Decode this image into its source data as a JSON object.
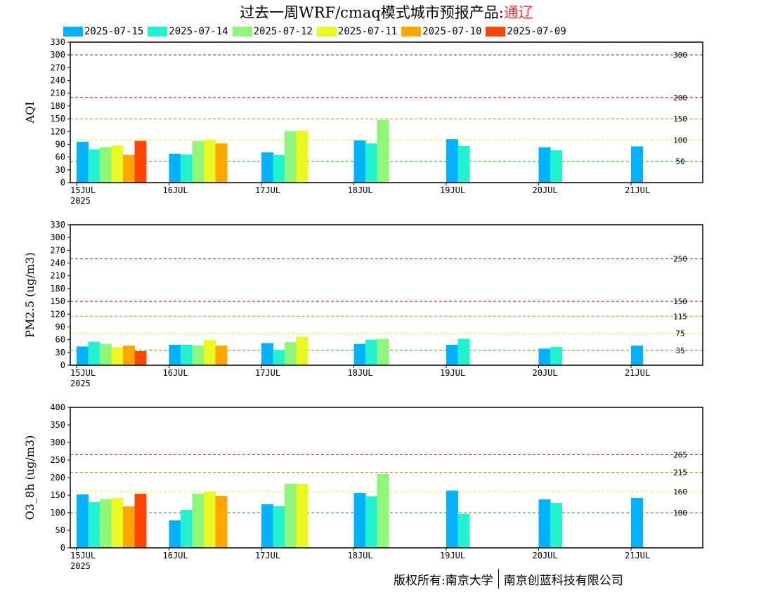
{
  "title": {
    "main": "过去一周WRF/cmaq模式城市预报产品:",
    "city": "通辽",
    "city_color": "#e8312a"
  },
  "legend": [
    {
      "label": "2025-07-15",
      "color": "#00b2ff"
    },
    {
      "label": "2025-07-14",
      "color": "#22f2cf"
    },
    {
      "label": "2025-07-12",
      "color": "#8ef77a"
    },
    {
      "label": "2025-07-11",
      "color": "#eaf721"
    },
    {
      "label": "2025-07-10",
      "color": "#ffa500"
    },
    {
      "label": "2025-07-09",
      "color": "#ff4500"
    }
  ],
  "footer": {
    "left": "版权所有:南京大学",
    "right": "南京创蓝科技有限公司"
  },
  "chart_data": [
    {
      "type": "bar",
      "ylabel": "AQI",
      "ylim": [
        0,
        330
      ],
      "yticks": [
        0,
        30,
        60,
        90,
        120,
        150,
        180,
        210,
        240,
        270,
        300,
        330
      ],
      "x_ticks": [
        "15JUL",
        "16JUL",
        "17JUL",
        "18JUL",
        "19JUL",
        "20JUL",
        "21JUL"
      ],
      "x_year": "2025",
      "thresholds": [
        {
          "value": 300,
          "label": "300",
          "color": "#a01040"
        },
        {
          "value": 200,
          "label": "200",
          "color": "#d00000"
        },
        {
          "value": 150,
          "label": "150",
          "color": "#f08000"
        },
        {
          "value": 100,
          "label": "100",
          "color": "#f0f000"
        },
        {
          "value": 50,
          "label": "50",
          "color": "#00c000"
        }
      ],
      "bars": [
        {
          "day": 0,
          "series": "2025-07-15",
          "value": 96
        },
        {
          "day": 0,
          "series": "2025-07-14",
          "value": 78
        },
        {
          "day": 0,
          "series": "2025-07-12",
          "value": 83
        },
        {
          "day": 0,
          "series": "2025-07-11",
          "value": 87
        },
        {
          "day": 0,
          "series": "2025-07-10",
          "value": 65
        },
        {
          "day": 0,
          "series": "2025-07-09",
          "value": 98
        },
        {
          "day": 1,
          "series": "2025-07-15",
          "value": 68
        },
        {
          "day": 1,
          "series": "2025-07-14",
          "value": 66
        },
        {
          "day": 1,
          "series": "2025-07-12",
          "value": 97
        },
        {
          "day": 1,
          "series": "2025-07-11",
          "value": 100
        },
        {
          "day": 1,
          "series": "2025-07-10",
          "value": 92
        },
        {
          "day": 2,
          "series": "2025-07-15",
          "value": 71
        },
        {
          "day": 2,
          "series": "2025-07-14",
          "value": 65
        },
        {
          "day": 2,
          "series": "2025-07-12",
          "value": 121
        },
        {
          "day": 2,
          "series": "2025-07-11",
          "value": 122
        },
        {
          "day": 3,
          "series": "2025-07-15",
          "value": 99
        },
        {
          "day": 3,
          "series": "2025-07-14",
          "value": 92
        },
        {
          "day": 3,
          "series": "2025-07-12",
          "value": 147
        },
        {
          "day": 4,
          "series": "2025-07-15",
          "value": 102
        },
        {
          "day": 4,
          "series": "2025-07-14",
          "value": 86
        },
        {
          "day": 5,
          "series": "2025-07-15",
          "value": 83
        },
        {
          "day": 5,
          "series": "2025-07-14",
          "value": 76
        },
        {
          "day": 6,
          "series": "2025-07-15",
          "value": 85
        }
      ]
    },
    {
      "type": "bar",
      "ylabel": "PM2.5 (ug/m3)",
      "ylim": [
        0,
        330
      ],
      "yticks": [
        0,
        30,
        60,
        90,
        120,
        150,
        180,
        210,
        240,
        270,
        300,
        330
      ],
      "x_ticks": [
        "15JUL",
        "16JUL",
        "17JUL",
        "18JUL",
        "19JUL",
        "20JUL",
        "21JUL"
      ],
      "x_year": "2025",
      "thresholds": [
        {
          "value": 250,
          "label": "250",
          "color": "#a01040"
        },
        {
          "value": 150,
          "label": "150",
          "color": "#d00000"
        },
        {
          "value": 115,
          "label": "115",
          "color": "#f08000"
        },
        {
          "value": 75,
          "label": "75",
          "color": "#f0f000"
        },
        {
          "value": 35,
          "label": "35",
          "color": "#00c000"
        }
      ],
      "bars": [
        {
          "day": 0,
          "series": "2025-07-15",
          "value": 44
        },
        {
          "day": 0,
          "series": "2025-07-14",
          "value": 55
        },
        {
          "day": 0,
          "series": "2025-07-12",
          "value": 50
        },
        {
          "day": 0,
          "series": "2025-07-11",
          "value": 42
        },
        {
          "day": 0,
          "series": "2025-07-10",
          "value": 46
        },
        {
          "day": 0,
          "series": "2025-07-09",
          "value": 33
        },
        {
          "day": 1,
          "series": "2025-07-15",
          "value": 48
        },
        {
          "day": 1,
          "series": "2025-07-14",
          "value": 48
        },
        {
          "day": 1,
          "series": "2025-07-12",
          "value": 46
        },
        {
          "day": 1,
          "series": "2025-07-11",
          "value": 59
        },
        {
          "day": 1,
          "series": "2025-07-10",
          "value": 46
        },
        {
          "day": 2,
          "series": "2025-07-15",
          "value": 52
        },
        {
          "day": 2,
          "series": "2025-07-14",
          "value": 36
        },
        {
          "day": 2,
          "series": "2025-07-12",
          "value": 54
        },
        {
          "day": 2,
          "series": "2025-07-11",
          "value": 67
        },
        {
          "day": 3,
          "series": "2025-07-15",
          "value": 50
        },
        {
          "day": 3,
          "series": "2025-07-14",
          "value": 60
        },
        {
          "day": 3,
          "series": "2025-07-12",
          "value": 62
        },
        {
          "day": 4,
          "series": "2025-07-15",
          "value": 48
        },
        {
          "day": 4,
          "series": "2025-07-14",
          "value": 62
        },
        {
          "day": 5,
          "series": "2025-07-15",
          "value": 39
        },
        {
          "day": 5,
          "series": "2025-07-14",
          "value": 43
        },
        {
          "day": 6,
          "series": "2025-07-15",
          "value": 46
        }
      ]
    },
    {
      "type": "bar",
      "ylabel": "O3_8h (ug/m3)",
      "ylim": [
        0,
        400
      ],
      "yticks": [
        0,
        50,
        100,
        150,
        200,
        250,
        300,
        350,
        400
      ],
      "x_ticks": [
        "15JUL",
        "16JUL",
        "17JUL",
        "18JUL",
        "19JUL",
        "20JUL",
        "21JUL"
      ],
      "x_year": "2025",
      "thresholds": [
        {
          "value": 265,
          "label": "265",
          "color": "#d00000"
        },
        {
          "value": 215,
          "label": "215",
          "color": "#f08000"
        },
        {
          "value": 160,
          "label": "160",
          "color": "#f0f000"
        },
        {
          "value": 100,
          "label": "100",
          "color": "#00c000"
        }
      ],
      "bars": [
        {
          "day": 0,
          "series": "2025-07-15",
          "value": 152
        },
        {
          "day": 0,
          "series": "2025-07-14",
          "value": 130
        },
        {
          "day": 0,
          "series": "2025-07-12",
          "value": 139
        },
        {
          "day": 0,
          "series": "2025-07-11",
          "value": 142
        },
        {
          "day": 0,
          "series": "2025-07-10",
          "value": 118
        },
        {
          "day": 0,
          "series": "2025-07-09",
          "value": 154
        },
        {
          "day": 1,
          "series": "2025-07-15",
          "value": 78
        },
        {
          "day": 1,
          "series": "2025-07-14",
          "value": 108
        },
        {
          "day": 1,
          "series": "2025-07-12",
          "value": 154
        },
        {
          "day": 1,
          "series": "2025-07-11",
          "value": 160
        },
        {
          "day": 1,
          "series": "2025-07-10",
          "value": 148
        },
        {
          "day": 2,
          "series": "2025-07-15",
          "value": 124
        },
        {
          "day": 2,
          "series": "2025-07-14",
          "value": 118
        },
        {
          "day": 2,
          "series": "2025-07-12",
          "value": 182
        },
        {
          "day": 2,
          "series": "2025-07-11",
          "value": 182
        },
        {
          "day": 3,
          "series": "2025-07-15",
          "value": 156
        },
        {
          "day": 3,
          "series": "2025-07-14",
          "value": 147
        },
        {
          "day": 3,
          "series": "2025-07-12",
          "value": 210
        },
        {
          "day": 4,
          "series": "2025-07-15",
          "value": 163
        },
        {
          "day": 4,
          "series": "2025-07-14",
          "value": 96
        },
        {
          "day": 5,
          "series": "2025-07-15",
          "value": 138
        },
        {
          "day": 5,
          "series": "2025-07-14",
          "value": 128
        },
        {
          "day": 6,
          "series": "2025-07-15",
          "value": 142
        }
      ]
    }
  ]
}
